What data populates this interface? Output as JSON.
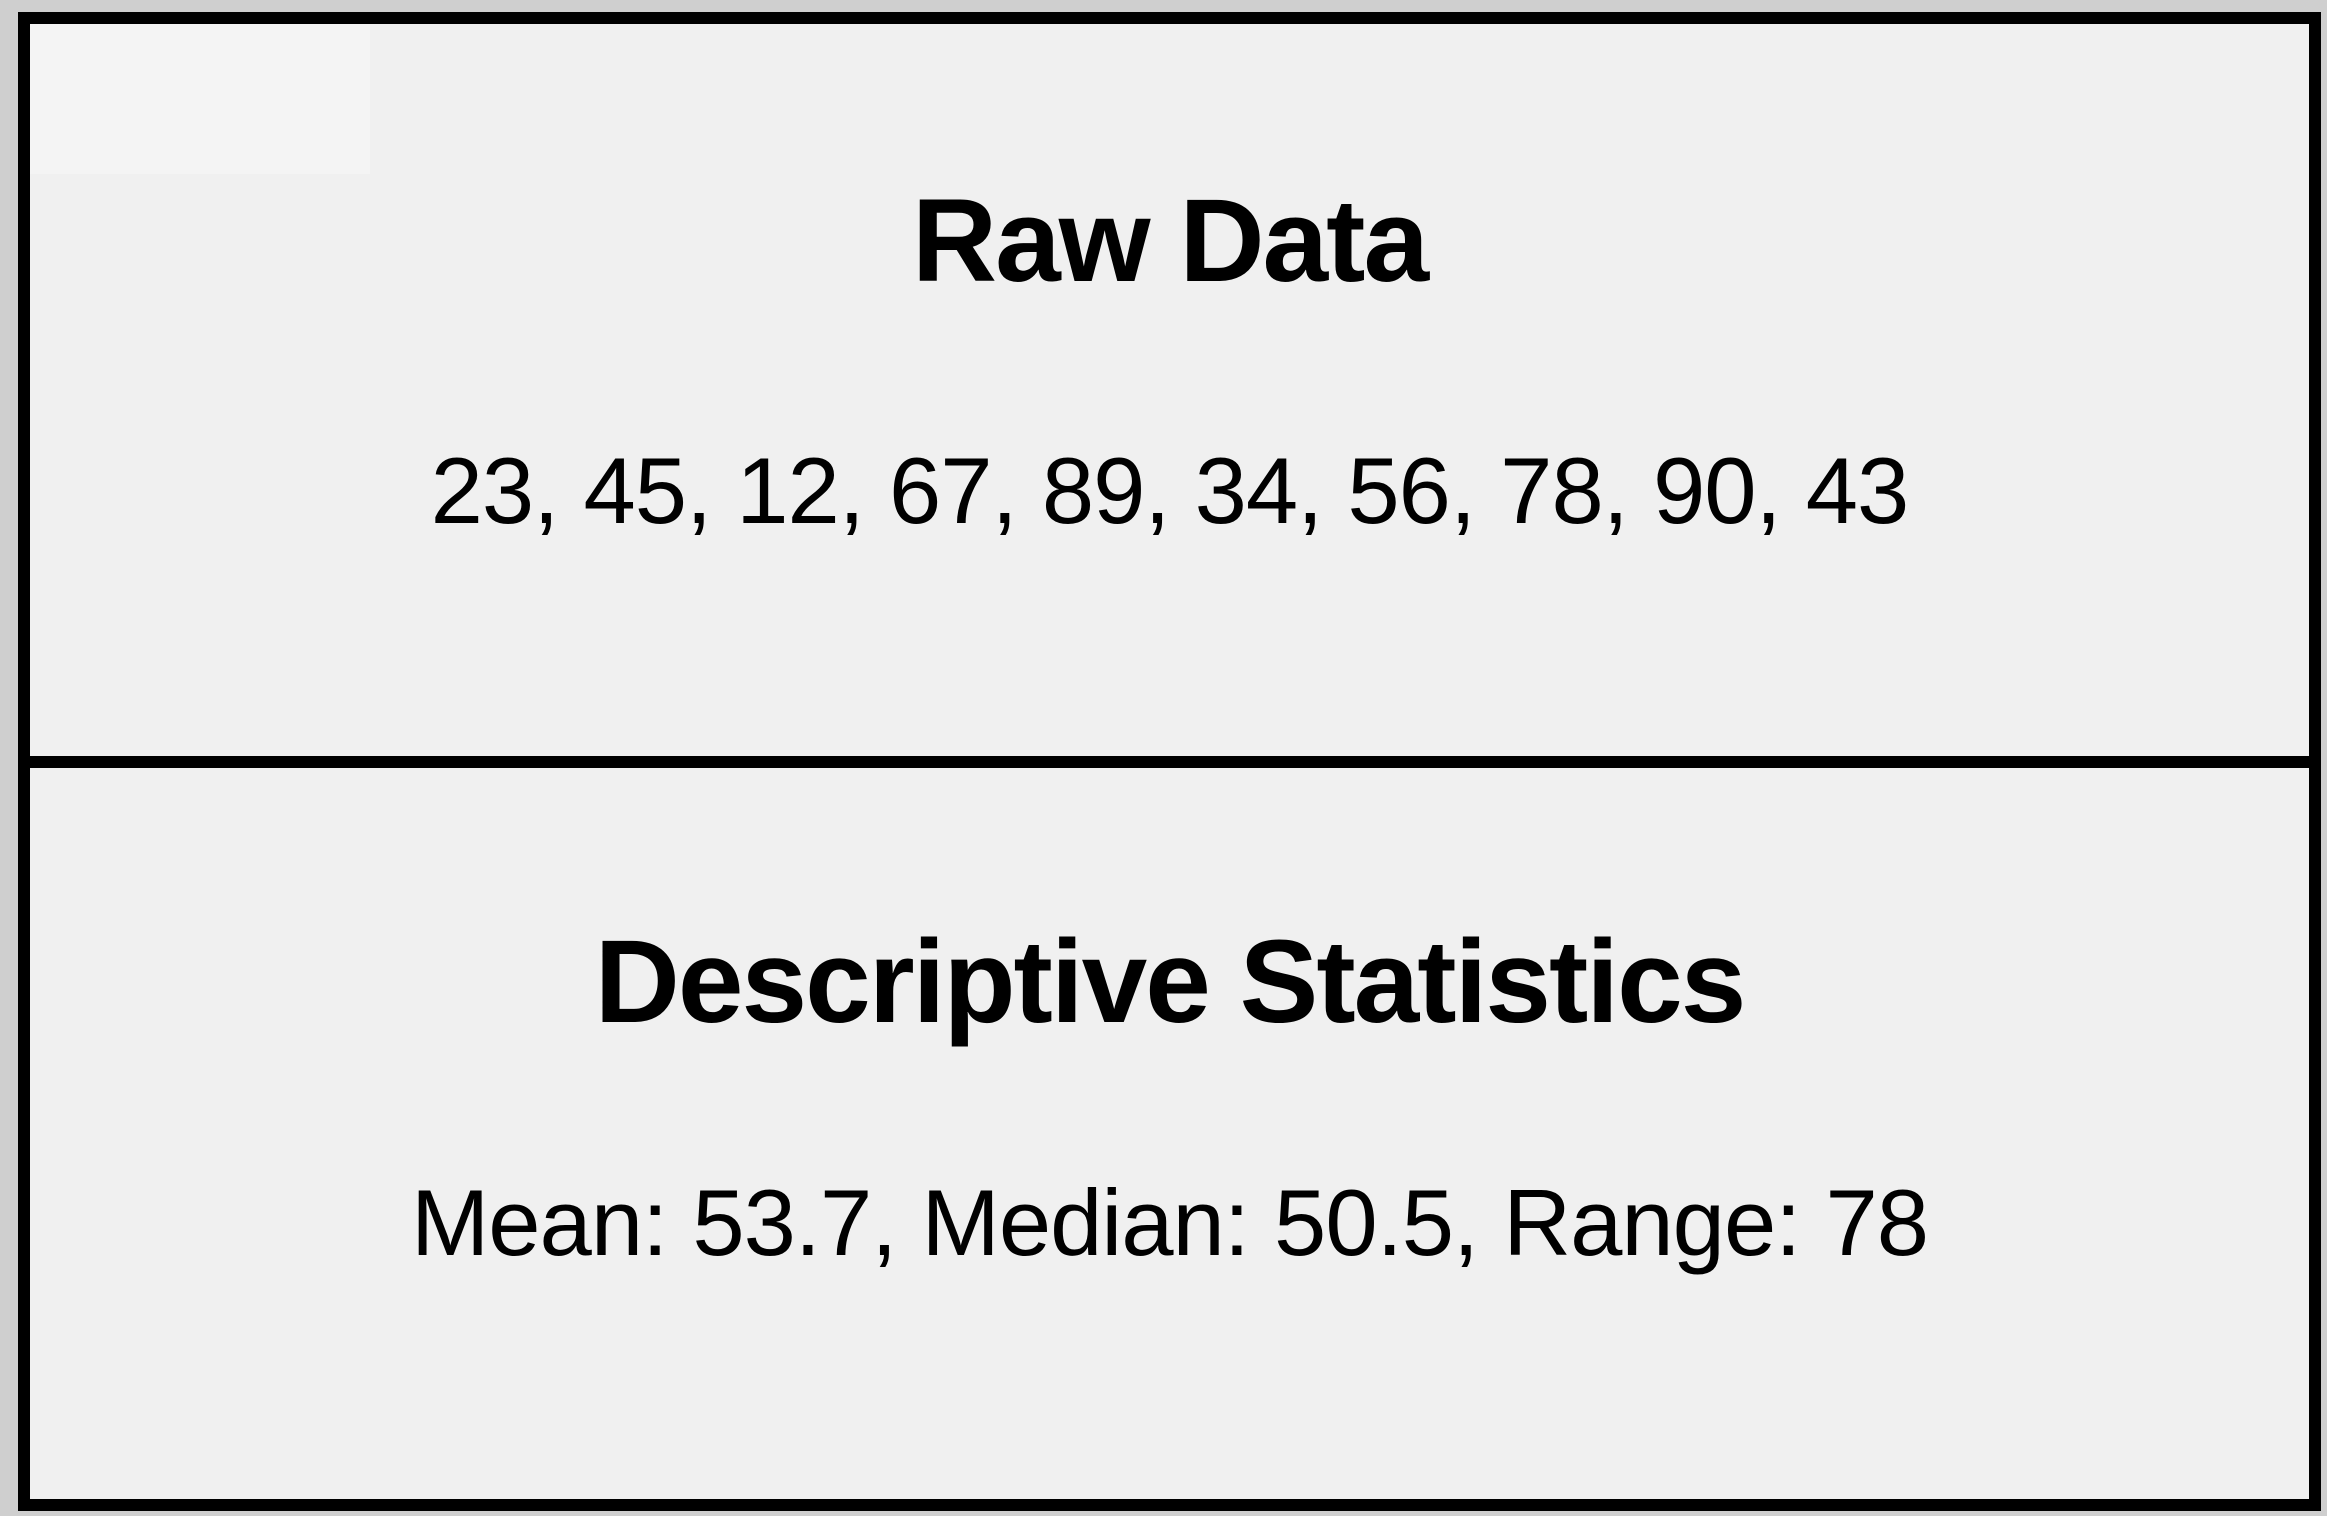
{
  "diagram": {
    "sections": [
      {
        "title": "Raw Data",
        "content": "23, 45, 12, 67, 89, 34, 56, 78, 90, 43"
      },
      {
        "title": "Descriptive Statistics",
        "content": "Mean: 53.7, Median: 50.5, Range: 78"
      }
    ]
  }
}
